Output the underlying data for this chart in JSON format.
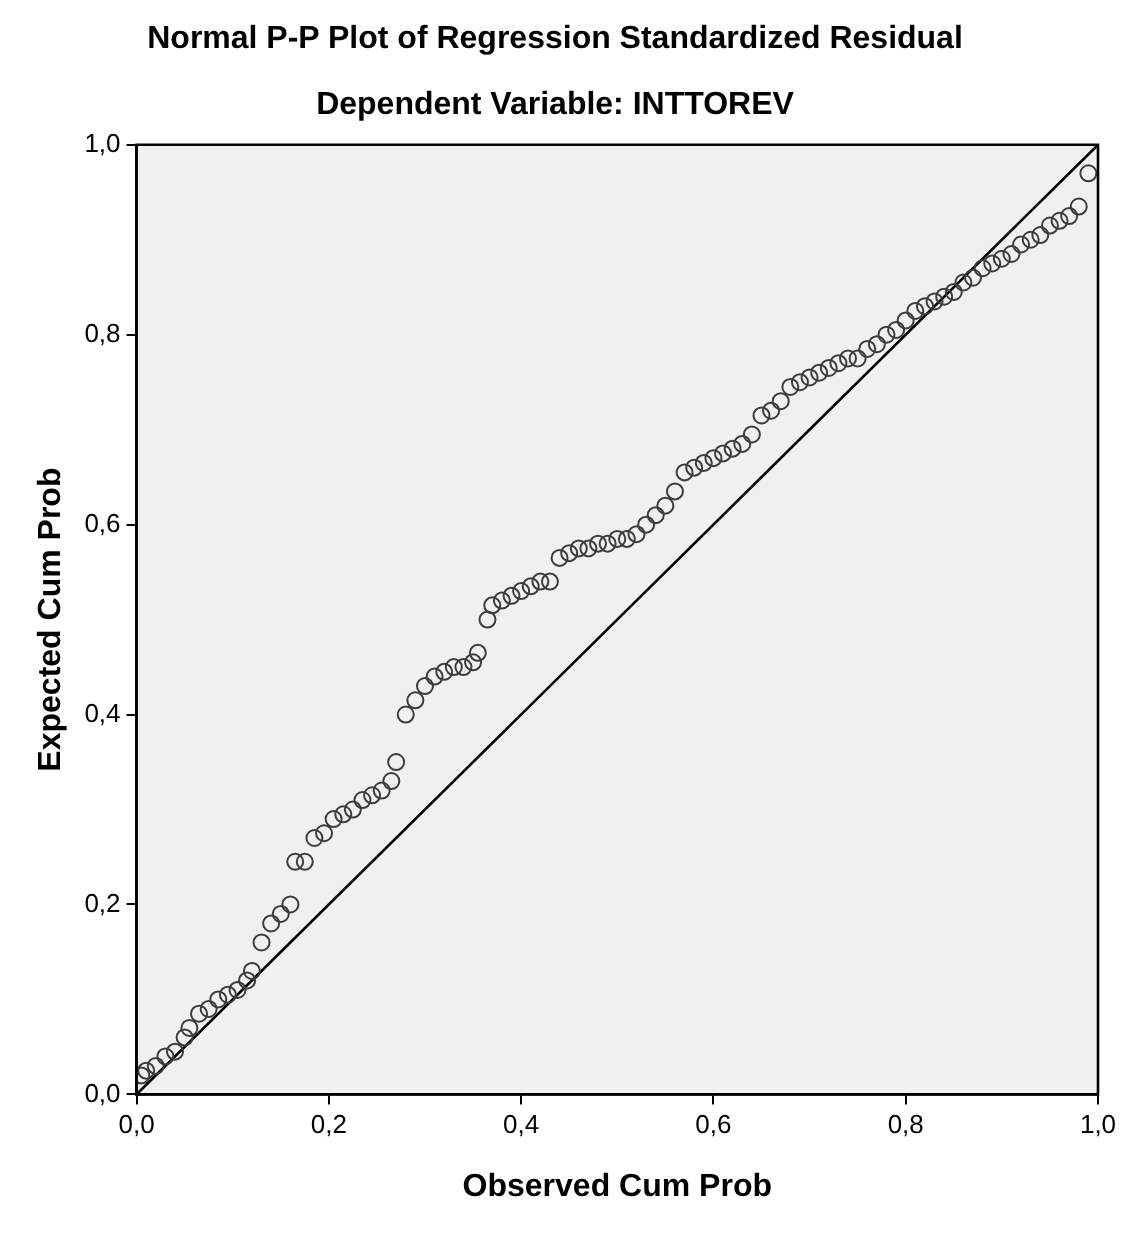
{
  "chart_data": {
    "type": "scatter",
    "title": "Normal P-P Plot of Regression Standardized Residual",
    "subtitle": "Dependent Variable: INTTOREV",
    "xlabel": "Observed Cum Prob",
    "ylabel": "Expected Cum Prob",
    "xlim": [
      0,
      1
    ],
    "ylim": [
      0,
      1
    ],
    "xticks": [
      {
        "value": 0,
        "label": "0,0"
      },
      {
        "value": 0.2,
        "label": "0,2"
      },
      {
        "value": 0.4,
        "label": "0,4"
      },
      {
        "value": 0.6,
        "label": "0,6"
      },
      {
        "value": 0.8,
        "label": "0,8"
      },
      {
        "value": 1,
        "label": "1,0"
      }
    ],
    "yticks": [
      {
        "value": 0,
        "label": "0,0"
      },
      {
        "value": 0.2,
        "label": "0,2"
      },
      {
        "value": 0.4,
        "label": "0,4"
      },
      {
        "value": 0.6,
        "label": "0,6"
      },
      {
        "value": 0.8,
        "label": "0,8"
      },
      {
        "value": 1,
        "label": "1,0"
      }
    ],
    "legend": false,
    "series": [
      {
        "marker": "circle",
        "color": "#3c3c3c",
        "x": [
          0.005,
          0.01,
          0.02,
          0.03,
          0.04,
          0.05,
          0.055,
          0.065,
          0.075,
          0.085,
          0.095,
          0.105,
          0.115,
          0.12,
          0.13,
          0.14,
          0.15,
          0.16,
          0.165,
          0.175,
          0.185,
          0.195,
          0.205,
          0.215,
          0.225,
          0.235,
          0.245,
          0.255,
          0.265,
          0.27,
          0.28,
          0.29,
          0.3,
          0.31,
          0.32,
          0.33,
          0.34,
          0.35,
          0.355,
          0.365,
          0.37,
          0.38,
          0.39,
          0.4,
          0.41,
          0.42,
          0.43,
          0.44,
          0.45,
          0.46,
          0.47,
          0.48,
          0.49,
          0.5,
          0.51,
          0.52,
          0.53,
          0.54,
          0.55,
          0.56,
          0.57,
          0.58,
          0.59,
          0.6,
          0.61,
          0.62,
          0.63,
          0.64,
          0.65,
          0.66,
          0.67,
          0.68,
          0.69,
          0.7,
          0.71,
          0.72,
          0.73,
          0.74,
          0.75,
          0.76,
          0.77,
          0.78,
          0.79,
          0.8,
          0.81,
          0.82,
          0.83,
          0.84,
          0.85,
          0.86,
          0.87,
          0.88,
          0.89,
          0.9,
          0.91,
          0.92,
          0.93,
          0.94,
          0.95,
          0.96,
          0.97,
          0.98,
          0.99
        ],
        "values": [
          0.02,
          0.025,
          0.03,
          0.04,
          0.045,
          0.06,
          0.07,
          0.085,
          0.09,
          0.1,
          0.105,
          0.11,
          0.12,
          0.13,
          0.16,
          0.18,
          0.19,
          0.2,
          0.245,
          0.245,
          0.27,
          0.275,
          0.29,
          0.295,
          0.3,
          0.31,
          0.315,
          0.32,
          0.33,
          0.35,
          0.4,
          0.415,
          0.43,
          0.44,
          0.445,
          0.45,
          0.45,
          0.455,
          0.465,
          0.5,
          0.515,
          0.52,
          0.525,
          0.53,
          0.535,
          0.54,
          0.54,
          0.565,
          0.57,
          0.575,
          0.575,
          0.58,
          0.58,
          0.585,
          0.585,
          0.59,
          0.6,
          0.61,
          0.62,
          0.635,
          0.655,
          0.66,
          0.665,
          0.67,
          0.675,
          0.68,
          0.685,
          0.695,
          0.715,
          0.72,
          0.73,
          0.745,
          0.75,
          0.755,
          0.76,
          0.765,
          0.77,
          0.775,
          0.775,
          0.785,
          0.79,
          0.8,
          0.805,
          0.815,
          0.825,
          0.83,
          0.835,
          0.84,
          0.845,
          0.855,
          0.86,
          0.87,
          0.875,
          0.88,
          0.885,
          0.895,
          0.9,
          0.905,
          0.915,
          0.92,
          0.925,
          0.935,
          0.97
        ]
      },
      {
        "type": "line",
        "marker": "none",
        "line_style": "solid",
        "color": "#000000",
        "x": [
          0,
          1
        ],
        "values": [
          0,
          1
        ]
      }
    ]
  }
}
